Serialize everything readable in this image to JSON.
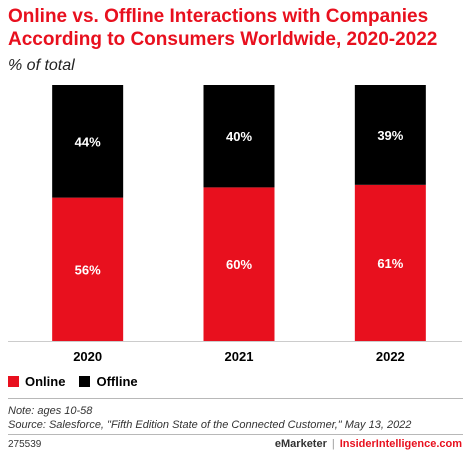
{
  "colors": {
    "online": "#e8101e",
    "offline": "#000000",
    "title": "#e8101e",
    "axis": "#cccccc"
  },
  "chart_data": {
    "type": "bar",
    "stacked": true,
    "title_lines": [
      "Online vs. Offline Interactions with Companies",
      "According to Consumers Worldwide, 2020-2022"
    ],
    "subtitle": "% of total",
    "categories": [
      "2020",
      "2021",
      "2022"
    ],
    "series": [
      {
        "name": "Online",
        "values": [
          56,
          60,
          61
        ],
        "labels": [
          "56%",
          "60%",
          "61%"
        ]
      },
      {
        "name": "Offline",
        "values": [
          44,
          40,
          39
        ],
        "labels": [
          "44%",
          "40%",
          "39%"
        ]
      }
    ],
    "ylim": [
      0,
      100
    ],
    "legend_position": "bottom-left",
    "grid": false
  },
  "footer": {
    "note": "Note: ages 10-58",
    "source": "Source: Salesforce, \"Fifth Edition State of the Connected Customer,\" May 13, 2022",
    "id": "275539",
    "brand_emarketer": "eMarketer",
    "brand_sep": "|",
    "brand_ii": "InsiderIntelligence.com"
  }
}
